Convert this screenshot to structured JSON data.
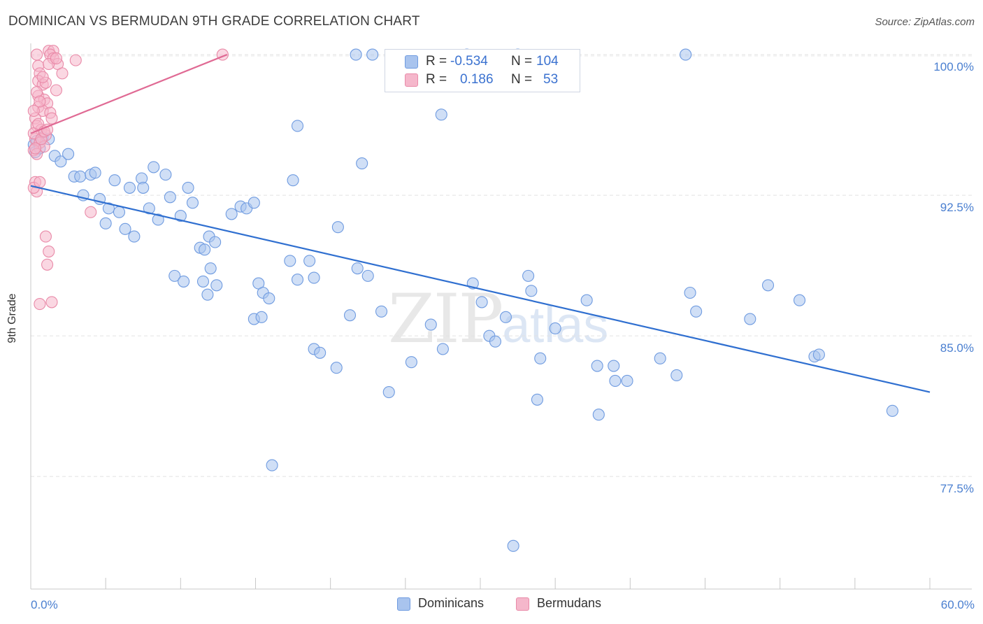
{
  "title": "DOMINICAN VS BERMUDAN 9TH GRADE CORRELATION CHART",
  "source": "Source: ZipAtlas.com",
  "watermark": {
    "zip": "ZIP",
    "atlas": "atlas"
  },
  "stats": {
    "rows": [
      {
        "r_label": "R =",
        "r_value": "-0.534",
        "n_label": "N =",
        "n_value": "104",
        "color": "#a9c4ee",
        "border": "#6f9be0"
      },
      {
        "r_label": "R =",
        "r_value": "0.186",
        "n_label": "N =",
        "n_value": "53",
        "color": "#f5b7cb",
        "border": "#e98aa8"
      }
    ]
  },
  "legend": {
    "items": [
      {
        "label": "Dominicans",
        "color": "#a9c4ee",
        "border": "#6f9be0"
      },
      {
        "label": "Bermudans",
        "color": "#f5b7cb",
        "border": "#e98aa8"
      }
    ]
  },
  "chart_data": {
    "type": "scatter",
    "title": "DOMINICAN VS BERMUDAN 9TH GRADE CORRELATION CHART",
    "xlabel": "",
    "ylabel": "9th Grade",
    "xlim": [
      0,
      60
    ],
    "ylim": [
      71.5,
      100.6
    ],
    "x_ticks": [
      0,
      60
    ],
    "x_tick_labels": [
      "0.0%",
      "60.0%"
    ],
    "y_ticks": [
      77.5,
      85.0,
      92.5,
      100.0
    ],
    "y_tick_labels": [
      "77.5%",
      "85.0%",
      "92.5%",
      "100.0%"
    ],
    "grid": true,
    "legend_position": "bottom-center",
    "series": [
      {
        "name": "Dominicans",
        "color": "#6f9be0",
        "fill": "#a9c4ee",
        "trend": {
          "x": [
            0,
            60
          ],
          "y": [
            93.0,
            82.0
          ],
          "color": "#2f6fd0"
        },
        "points": [
          [
            0.2,
            95.2
          ],
          [
            0.3,
            94.8
          ],
          [
            0.4,
            95.4
          ],
          [
            0.6,
            95.0
          ],
          [
            0.8,
            95.6
          ],
          [
            1.2,
            95.5
          ],
          [
            1.6,
            94.6
          ],
          [
            2.0,
            94.3
          ],
          [
            2.5,
            94.7
          ],
          [
            2.9,
            93.5
          ],
          [
            3.3,
            93.5
          ],
          [
            4.0,
            93.6
          ],
          [
            4.3,
            93.7
          ],
          [
            3.5,
            92.5
          ],
          [
            4.6,
            92.3
          ],
          [
            5.2,
            91.8
          ],
          [
            5.0,
            91.0
          ],
          [
            5.9,
            91.6
          ],
          [
            5.6,
            93.3
          ],
          [
            6.6,
            92.9
          ],
          [
            7.4,
            93.4
          ],
          [
            7.5,
            92.9
          ],
          [
            7.9,
            91.8
          ],
          [
            8.5,
            91.2
          ],
          [
            8.2,
            94.0
          ],
          [
            9.0,
            93.6
          ],
          [
            9.3,
            92.4
          ],
          [
            10.0,
            91.4
          ],
          [
            10.5,
            92.9
          ],
          [
            10.8,
            92.1
          ],
          [
            6.3,
            90.7
          ],
          [
            6.9,
            90.3
          ],
          [
            11.3,
            89.7
          ],
          [
            11.6,
            89.6
          ],
          [
            11.9,
            90.3
          ],
          [
            12.3,
            90.0
          ],
          [
            13.4,
            91.5
          ],
          [
            14.0,
            91.9
          ],
          [
            14.4,
            91.8
          ],
          [
            14.9,
            92.1
          ],
          [
            9.6,
            88.2
          ],
          [
            10.2,
            87.9
          ],
          [
            11.5,
            87.9
          ],
          [
            11.8,
            87.2
          ],
          [
            12.0,
            88.6
          ],
          [
            12.4,
            87.7
          ],
          [
            15.2,
            87.8
          ],
          [
            15.5,
            87.3
          ],
          [
            15.9,
            87.0
          ],
          [
            17.3,
            89.0
          ],
          [
            17.8,
            88.0
          ],
          [
            18.9,
            88.1
          ],
          [
            18.6,
            89.0
          ],
          [
            22.5,
            88.2
          ],
          [
            14.9,
            85.9
          ],
          [
            18.9,
            84.3
          ],
          [
            19.3,
            84.1
          ],
          [
            20.4,
            83.3
          ],
          [
            17.5,
            93.3
          ],
          [
            17.8,
            96.2
          ],
          [
            20.5,
            90.8
          ],
          [
            21.3,
            86.1
          ],
          [
            22.1,
            94.2
          ],
          [
            21.8,
            88.6
          ],
          [
            23.4,
            86.3
          ],
          [
            23.9,
            82.0
          ],
          [
            25.4,
            83.6
          ],
          [
            26.7,
            85.6
          ],
          [
            27.5,
            84.3
          ],
          [
            29.5,
            87.8
          ],
          [
            30.1,
            86.8
          ],
          [
            30.6,
            85.0
          ],
          [
            31.0,
            84.7
          ],
          [
            31.7,
            86.0
          ],
          [
            32.5,
            100.0
          ],
          [
            29.1,
            100.0
          ],
          [
            27.4,
            96.8
          ],
          [
            32.2,
            73.8
          ],
          [
            33.2,
            88.2
          ],
          [
            33.4,
            87.4
          ],
          [
            34.0,
            83.8
          ],
          [
            33.8,
            81.6
          ],
          [
            35.0,
            85.4
          ],
          [
            37.1,
            86.9
          ],
          [
            37.8,
            83.4
          ],
          [
            37.9,
            80.8
          ],
          [
            38.9,
            83.4
          ],
          [
            39.0,
            82.6
          ],
          [
            39.8,
            82.6
          ],
          [
            42.0,
            83.8
          ],
          [
            43.1,
            82.9
          ],
          [
            44.0,
            87.3
          ],
          [
            44.4,
            86.3
          ],
          [
            48.0,
            85.9
          ],
          [
            49.2,
            87.7
          ],
          [
            51.3,
            86.9
          ],
          [
            52.3,
            83.9
          ],
          [
            52.6,
            84.0
          ],
          [
            57.5,
            81.0
          ],
          [
            21.7,
            100.0
          ],
          [
            22.8,
            100.0
          ],
          [
            43.7,
            100.0
          ],
          [
            16.1,
            78.1
          ],
          [
            15.4,
            86.0
          ]
        ]
      },
      {
        "name": "Bermudans",
        "color": "#e98aa8",
        "fill": "#f5b7cb",
        "trend": {
          "x": [
            0,
            13.1
          ],
          "y": [
            95.8,
            100.0
          ],
          "color": "#e06a94"
        },
        "points": [
          [
            0.4,
            100.0
          ],
          [
            1.2,
            100.2
          ],
          [
            1.5,
            100.2
          ],
          [
            1.3,
            100.0
          ],
          [
            1.5,
            99.8
          ],
          [
            3.0,
            99.7
          ],
          [
            1.8,
            99.5
          ],
          [
            0.5,
            99.4
          ],
          [
            1.2,
            99.5
          ],
          [
            2.1,
            99.0
          ],
          [
            0.6,
            99.0
          ],
          [
            0.5,
            98.6
          ],
          [
            0.8,
            98.4
          ],
          [
            1.0,
            98.5
          ],
          [
            1.7,
            98.1
          ],
          [
            0.5,
            97.8
          ],
          [
            0.9,
            97.6
          ],
          [
            1.1,
            97.4
          ],
          [
            0.5,
            97.2
          ],
          [
            0.8,
            97.0
          ],
          [
            1.3,
            96.9
          ],
          [
            0.3,
            96.6
          ],
          [
            1.4,
            96.6
          ],
          [
            0.4,
            96.2
          ],
          [
            0.7,
            96.0
          ],
          [
            1.0,
            95.7
          ],
          [
            0.3,
            95.5
          ],
          [
            0.6,
            95.3
          ],
          [
            0.9,
            95.1
          ],
          [
            0.2,
            94.9
          ],
          [
            0.4,
            94.7
          ],
          [
            0.3,
            93.2
          ],
          [
            0.4,
            92.7
          ],
          [
            0.2,
            92.9
          ],
          [
            0.6,
            93.2
          ],
          [
            4.0,
            91.6
          ],
          [
            1.0,
            90.3
          ],
          [
            1.2,
            89.5
          ],
          [
            1.1,
            88.8
          ],
          [
            0.6,
            86.7
          ],
          [
            1.4,
            86.8
          ],
          [
            0.2,
            95.8
          ],
          [
            0.3,
            95.0
          ],
          [
            0.5,
            96.3
          ],
          [
            0.7,
            95.5
          ],
          [
            0.9,
            95.9
          ],
          [
            1.1,
            96.0
          ],
          [
            0.4,
            98.0
          ],
          [
            1.7,
            99.8
          ],
          [
            12.8,
            100.0
          ],
          [
            0.6,
            97.5
          ],
          [
            0.2,
            97.0
          ],
          [
            0.8,
            98.8
          ]
        ]
      }
    ]
  }
}
